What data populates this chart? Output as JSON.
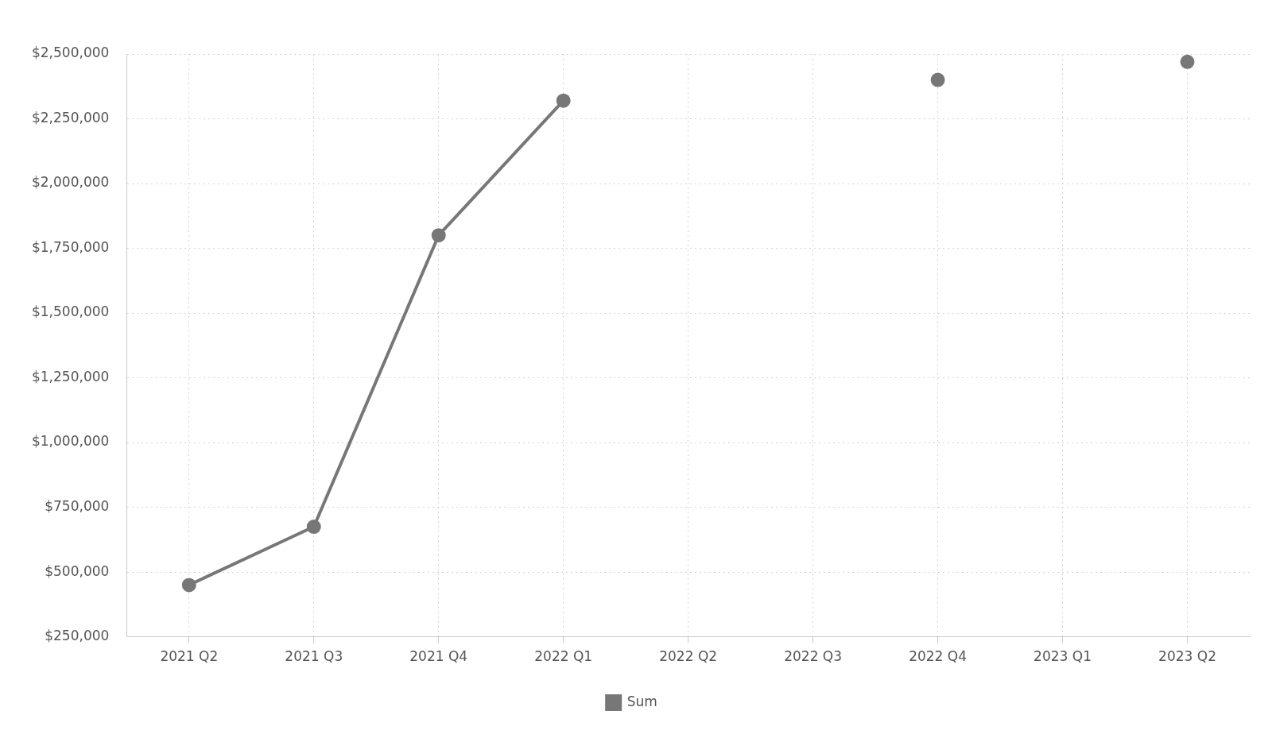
{
  "chart_data": {
    "type": "line",
    "categories": [
      "2021 Q2",
      "2021 Q3",
      "2021 Q4",
      "2022 Q1",
      "2022 Q2",
      "2022 Q3",
      "2022 Q4",
      "2023 Q1",
      "2023 Q2"
    ],
    "series": [
      {
        "name": "Sum",
        "color": "#777777",
        "values": [
          450000,
          675000,
          1800000,
          2320000,
          null,
          null,
          2400000,
          null,
          2470000
        ]
      }
    ],
    "ylim": [
      250000,
      2500000
    ],
    "yticks": [
      {
        "value": 250000,
        "label": "$250,000"
      },
      {
        "value": 500000,
        "label": "$500,000"
      },
      {
        "value": 750000,
        "label": "$750,000"
      },
      {
        "value": 1000000,
        "label": "$1,000,000"
      },
      {
        "value": 1250000,
        "label": "$1,250,000"
      },
      {
        "value": 1500000,
        "label": "$1,500,000"
      },
      {
        "value": 1750000,
        "label": "$1,750,000"
      },
      {
        "value": 2000000,
        "label": "$2,000,000"
      },
      {
        "value": 2250000,
        "label": "$2,250,000"
      },
      {
        "value": 2500000,
        "label": "$2,500,000"
      }
    ],
    "grid": true,
    "legend": "bottom",
    "marker": "circle",
    "line_style": "solid"
  }
}
